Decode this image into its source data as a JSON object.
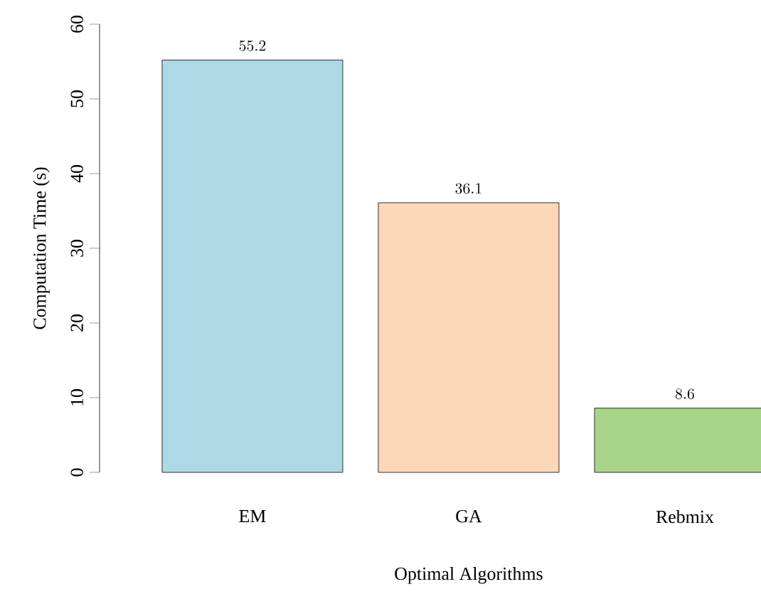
{
  "chart_data": {
    "type": "bar",
    "xlabel": "Optimal Algorithms",
    "ylabel": "Computation Time (s)",
    "categories": [
      "EM",
      "GA",
      "Rebmix"
    ],
    "values": [
      55.2,
      36.1,
      8.6
    ],
    "colors": [
      "#add8e6",
      "#fcd8b8",
      "#a8d48a"
    ],
    "ylim": [
      0,
      60
    ],
    "yticks": [
      0,
      10,
      20,
      30,
      40,
      50,
      60
    ],
    "data_labels": true
  }
}
